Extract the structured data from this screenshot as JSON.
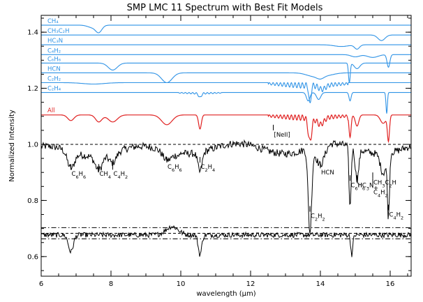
{
  "chart_data": {
    "type": "line",
    "title": "SMP LMC 11 Spectrum with Best Fit Models",
    "xlabel": "wavelength (μm)",
    "ylabel": "Normalized Intensity",
    "xlim": [
      6,
      16.6
    ],
    "ylim": [
      0.53,
      1.46
    ],
    "xticks": [
      6,
      8,
      10,
      12,
      14,
      16
    ],
    "yticks": [
      0.6,
      0.8,
      1.0,
      1.2,
      1.4
    ],
    "grid": false,
    "colors": {
      "model": "#2f93e6",
      "all": "#e02020",
      "data": "#000000"
    },
    "model_series": [
      {
        "name": "CH₄",
        "baseline": 1.425,
        "features": [
          [
            7.65,
            0.025,
            0.09
          ],
          [
            7.45,
            0.008,
            0.12
          ]
        ]
      },
      {
        "name": "CH₃C₂H",
        "baseline": 1.39,
        "features": [
          [
            15.75,
            0.02,
            0.1
          ]
        ]
      },
      {
        "name": "HC₃N",
        "baseline": 1.355,
        "features": [
          [
            15.05,
            0.015,
            0.07
          ],
          [
            14.6,
            0.006,
            0.2
          ]
        ]
      },
      {
        "name": "C₄H₂",
        "baseline": 1.32,
        "features": [
          [
            15.95,
            0.045,
            0.04
          ],
          [
            15.5,
            0.01,
            0.15
          ],
          [
            15.0,
            0.008,
            0.12
          ]
        ]
      },
      {
        "name": "C₆H₆",
        "baseline": 1.29,
        "features": [
          [
            8.05,
            0.025,
            0.13
          ],
          [
            14.83,
            0.07,
            0.025
          ],
          [
            15.05,
            0.02,
            0.08
          ]
        ]
      },
      {
        "name": "HCN",
        "baseline": 1.255,
        "features": [
          [
            9.6,
            0.035,
            0.15
          ],
          [
            14.0,
            0.01,
            0.1
          ],
          [
            13.8,
            0.012,
            0.2
          ],
          [
            14.2,
            0.008,
            0.2
          ]
        ]
      },
      {
        "name": "C₂H₂",
        "baseline": 1.22,
        "features": [
          [
            13.7,
            0.07,
            0.03
          ],
          [
            7.5,
            0.005,
            0.3
          ],
          [
            14.05,
            0.015,
            0.1
          ]
        ]
      },
      {
        "name": "C₂H₄",
        "baseline": 1.185,
        "features": [
          [
            10.55,
            0.015,
            0.04
          ],
          [
            15.9,
            0.075,
            0.02
          ],
          [
            13.65,
            0.03,
            0.05
          ],
          [
            13.95,
            0.025,
            0.06
          ],
          [
            14.85,
            0.03,
            0.03
          ]
        ]
      }
    ],
    "all_series": {
      "name": "All",
      "baseline": 1.105,
      "features": [
        [
          6.85,
          0.02,
          0.09
        ],
        [
          7.65,
          0.025,
          0.09
        ],
        [
          8.05,
          0.025,
          0.13
        ],
        [
          9.6,
          0.035,
          0.15
        ],
        [
          10.55,
          0.05,
          0.04
        ],
        [
          13.7,
          0.085,
          0.05
        ],
        [
          14.0,
          0.025,
          0.1
        ],
        [
          14.85,
          0.08,
          0.03
        ],
        [
          15.05,
          0.04,
          0.05
        ],
        [
          15.8,
          0.03,
          0.08
        ],
        [
          15.95,
          0.09,
          0.03
        ]
      ]
    },
    "observed_spectrum": {
      "name": "SMP LMC 11",
      "baseline": 0.985,
      "noise": 0.013,
      "features": [
        [
          6.85,
          0.06,
          0.1
        ],
        [
          7.65,
          0.05,
          0.1
        ],
        [
          8.05,
          0.035,
          0.1
        ],
        [
          9.6,
          0.03,
          0.12
        ],
        [
          10.55,
          0.07,
          0.06
        ],
        [
          13.7,
          0.3,
          0.05
        ],
        [
          14.0,
          0.07,
          0.12
        ],
        [
          14.85,
          0.22,
          0.03
        ],
        [
          15.05,
          0.11,
          0.05
        ],
        [
          15.8,
          0.07,
          0.08
        ],
        [
          15.95,
          0.22,
          0.03
        ]
      ]
    },
    "residual_spectrum": {
      "baseline": 0.677,
      "noise": 0.009,
      "features": [
        [
          6.85,
          0.06,
          0.07
        ],
        [
          10.55,
          0.07,
          0.05
        ],
        [
          14.9,
          0.07,
          0.03
        ]
      ]
    },
    "reference_lines": [
      {
        "y": 1.0,
        "style": "dashed"
      },
      {
        "y": 0.703,
        "style": "dashdot"
      },
      {
        "y": 0.683,
        "style": "dashed"
      },
      {
        "y": 0.663,
        "style": "dashdot"
      }
    ],
    "annotations": [
      {
        "x": 6.85,
        "y": 0.9,
        "parts": [
          "C",
          "6",
          "H",
          "6"
        ]
      },
      {
        "x": 7.65,
        "y": 0.9,
        "parts": [
          "CH",
          "4"
        ]
      },
      {
        "x": 8.05,
        "y": 0.9,
        "parts": [
          "C",
          "4",
          "H",
          "2"
        ]
      },
      {
        "x": 9.6,
        "y": 0.925,
        "parts": [
          "C",
          "6",
          "H",
          "6"
        ]
      },
      {
        "x": 10.55,
        "y": 0.925,
        "parts": [
          "C",
          "2",
          "H",
          "4"
        ]
      },
      {
        "x": 12.65,
        "y": 1.04,
        "parts": [
          "[NeII]"
        ]
      },
      {
        "x": 13.7,
        "y": 0.75,
        "parts": [
          "C",
          "2",
          "H",
          "2"
        ]
      },
      {
        "x": 14.0,
        "y": 0.905,
        "parts": [
          "HCN"
        ]
      },
      {
        "x": 14.85,
        "y": 0.86,
        "parts": [
          "C",
          "6",
          "H",
          "6"
        ]
      },
      {
        "x": 15.05,
        "y": 0.86,
        "parts": [
          "HC",
          "3",
          "N"
        ]
      },
      {
        "x": 15.5,
        "y": 0.87,
        "parts": [
          "CH",
          "3",
          "C",
          "2",
          "H"
        ]
      },
      {
        "x": 15.5,
        "y": 0.85,
        "parts": [
          "+"
        ]
      },
      {
        "x": 15.5,
        "y": 0.835,
        "parts": [
          "C",
          "4",
          "H",
          "2"
        ]
      },
      {
        "x": 15.95,
        "y": 0.755,
        "parts": [
          "C",
          "4",
          "H",
          "2"
        ]
      }
    ]
  }
}
